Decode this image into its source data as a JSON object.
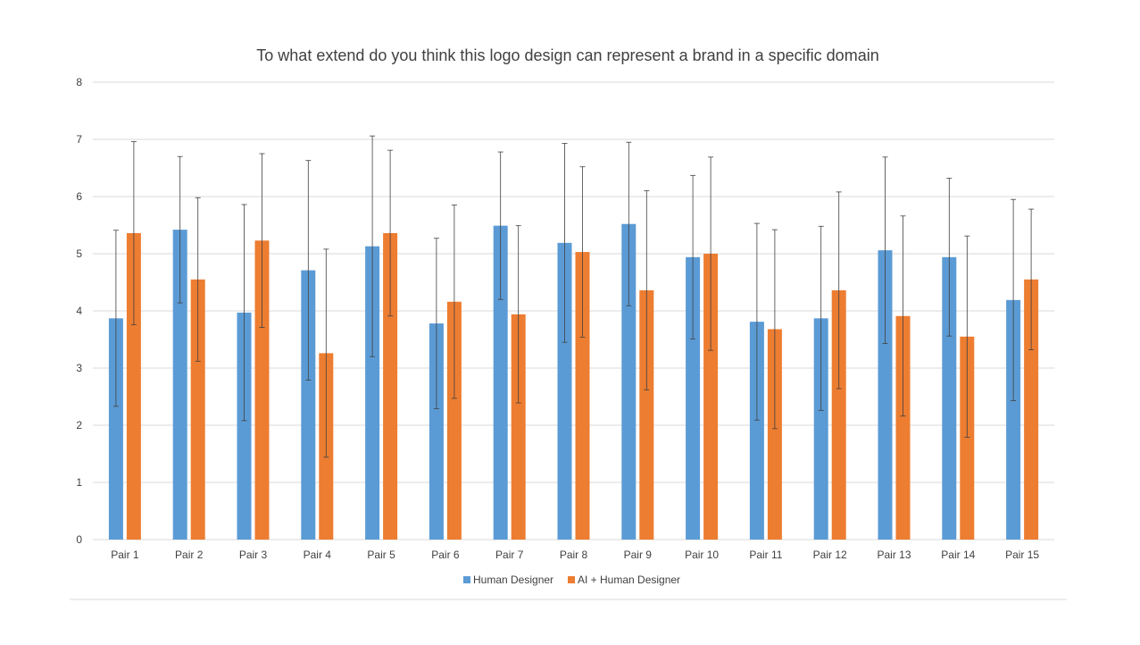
{
  "chart_data": {
    "type": "bar",
    "title": "To what extend do you think this logo design can represent a brand in a specific domain",
    "xlabel": "",
    "ylabel": "",
    "ylim": [
      0,
      8
    ],
    "yticks": [
      "0",
      "1",
      "2",
      "3",
      "4",
      "5",
      "6",
      "7",
      "8"
    ],
    "grid": true,
    "legend_position": "bottom",
    "categories": [
      "Pair 1",
      "Pair 2",
      "Pair 3",
      "Pair 4",
      "Pair 5",
      "Pair 6",
      "Pair 7",
      "Pair 8",
      "Pair 9",
      "Pair 10",
      "Pair 11",
      "Pair 12",
      "Pair 13",
      "Pair 14",
      "Pair 15"
    ],
    "series": [
      {
        "name": "Human Designer",
        "color": "#5B9BD5",
        "values": [
          3.87,
          5.42,
          3.97,
          4.71,
          5.13,
          3.78,
          5.49,
          5.19,
          5.52,
          4.94,
          3.81,
          3.87,
          5.06,
          4.94,
          4.19
        ],
        "error": [
          1.54,
          1.28,
          1.89,
          1.92,
          1.93,
          1.49,
          1.29,
          1.74,
          1.43,
          1.43,
          1.72,
          1.61,
          1.63,
          1.38,
          1.76
        ]
      },
      {
        "name": "AI + Human Designer",
        "color": "#ED7D31",
        "values": [
          5.36,
          4.55,
          5.23,
          3.26,
          5.36,
          4.16,
          3.94,
          5.03,
          4.36,
          5.0,
          3.68,
          4.36,
          3.91,
          3.55,
          4.55
        ],
        "error": [
          1.6,
          1.43,
          1.52,
          1.82,
          1.45,
          1.69,
          1.55,
          1.49,
          1.74,
          1.69,
          1.74,
          1.72,
          1.75,
          1.76,
          1.23
        ]
      }
    ]
  }
}
